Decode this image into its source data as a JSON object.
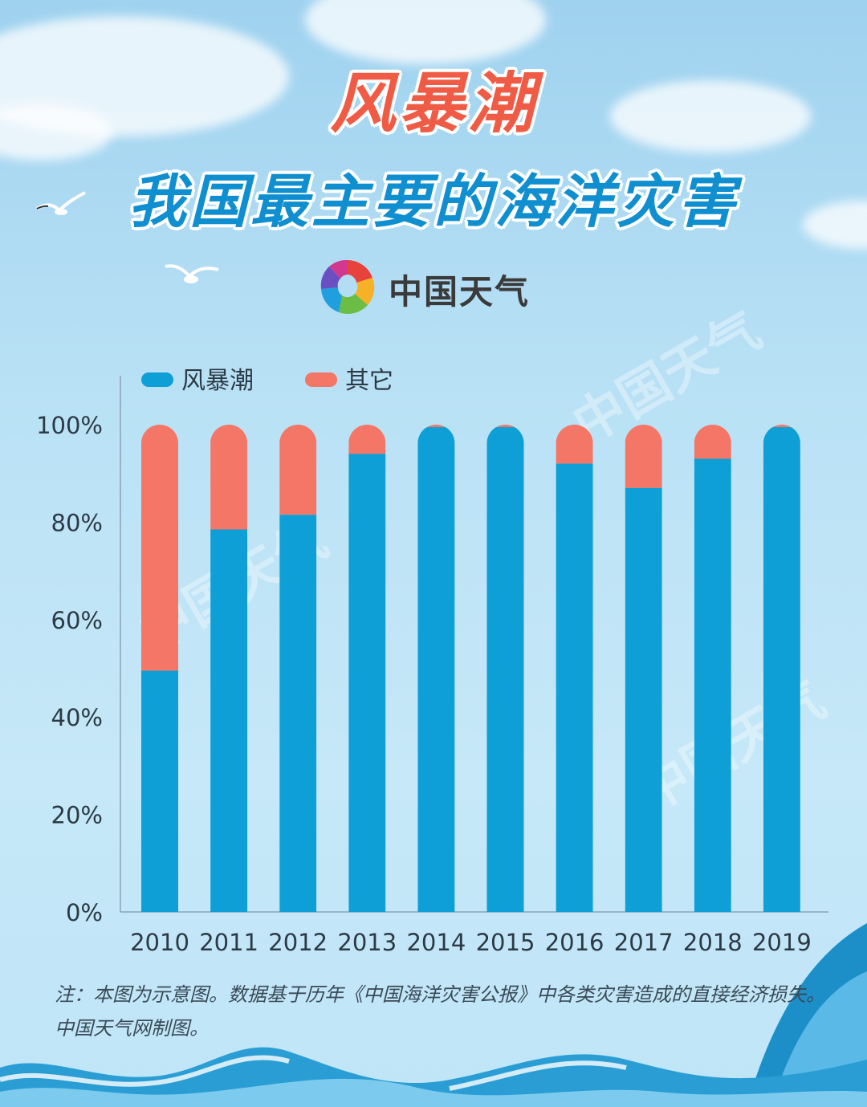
{
  "title": "风暴潮",
  "subtitle": "我国最主要的海洋灾害",
  "logo": {
    "text": "中国天气"
  },
  "watermark": "中国天气",
  "footnote": "注：本图为示意图。数据基于历年《中国海洋灾害公报》中各类灾害造成的直接经济损失。中国天气网制图。",
  "colors": {
    "storm_surge": "#0e9fd6",
    "other": "#f47666",
    "title_red": "#ef5b45",
    "title_blue": "#0f8fcf"
  },
  "chart_data": {
    "type": "bar",
    "stacked": true,
    "categories": [
      "2010",
      "2011",
      "2012",
      "2013",
      "2014",
      "2015",
      "2016",
      "2017",
      "2018",
      "2019"
    ],
    "series": [
      {
        "name": "风暴潮",
        "values": [
          49.5,
          78.5,
          81.5,
          94.0,
          99.5,
          99.5,
          92.0,
          87.0,
          93.0,
          99.5
        ]
      },
      {
        "name": "其它",
        "values": [
          50.5,
          21.5,
          18.5,
          6.0,
          0.5,
          0.5,
          8.0,
          13.0,
          7.0,
          0.5
        ]
      }
    ],
    "yticks": [
      "0%",
      "20%",
      "40%",
      "60%",
      "80%",
      "100%"
    ],
    "ylim": [
      0,
      100
    ],
    "legend": "top-left",
    "grid": false
  }
}
